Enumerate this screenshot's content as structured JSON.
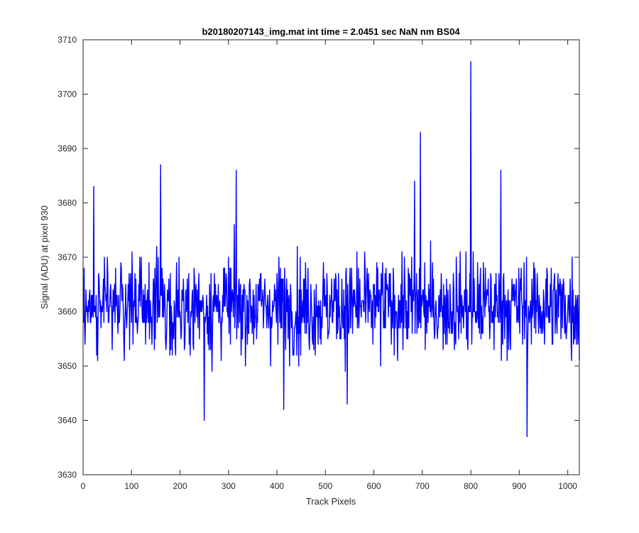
{
  "chart_data": {
    "type": "line",
    "title": "b20180207143_img.mat int time = 2.0451 sec  NaN nm BS04",
    "xlabel": "Track Pixels",
    "ylabel": "Signal (ADU) at pixel 930",
    "xlim": [
      0,
      1024
    ],
    "ylim": [
      3630,
      3710
    ],
    "xticks": [
      0,
      100,
      200,
      300,
      400,
      500,
      600,
      700,
      800,
      900,
      1000
    ],
    "yticks": [
      3630,
      3640,
      3650,
      3660,
      3670,
      3680,
      3690,
      3700,
      3710
    ],
    "grid": false,
    "legend": "none",
    "series": [
      {
        "color": "#0000ff",
        "x_start": 1,
        "x_step": 1,
        "peaks": [
          {
            "x": 22,
            "y": 3683
          },
          {
            "x": 160,
            "y": 3687
          },
          {
            "x": 250,
            "y": 3640
          },
          {
            "x": 316,
            "y": 3686
          },
          {
            "x": 414,
            "y": 3642
          },
          {
            "x": 545,
            "y": 3643
          },
          {
            "x": 684,
            "y": 3684
          },
          {
            "x": 696,
            "y": 3693
          },
          {
            "x": 800,
            "y": 3706
          },
          {
            "x": 862,
            "y": 3686
          },
          {
            "x": 916,
            "y": 3637
          },
          {
            "x": 1024,
            "y": 3651
          }
        ],
        "baseline": 3661,
        "min_observed": 3637,
        "max_observed": 3706
      }
    ]
  },
  "colors": {
    "line": "#0000ff",
    "axes": "#262626",
    "background": "#ffffff"
  }
}
